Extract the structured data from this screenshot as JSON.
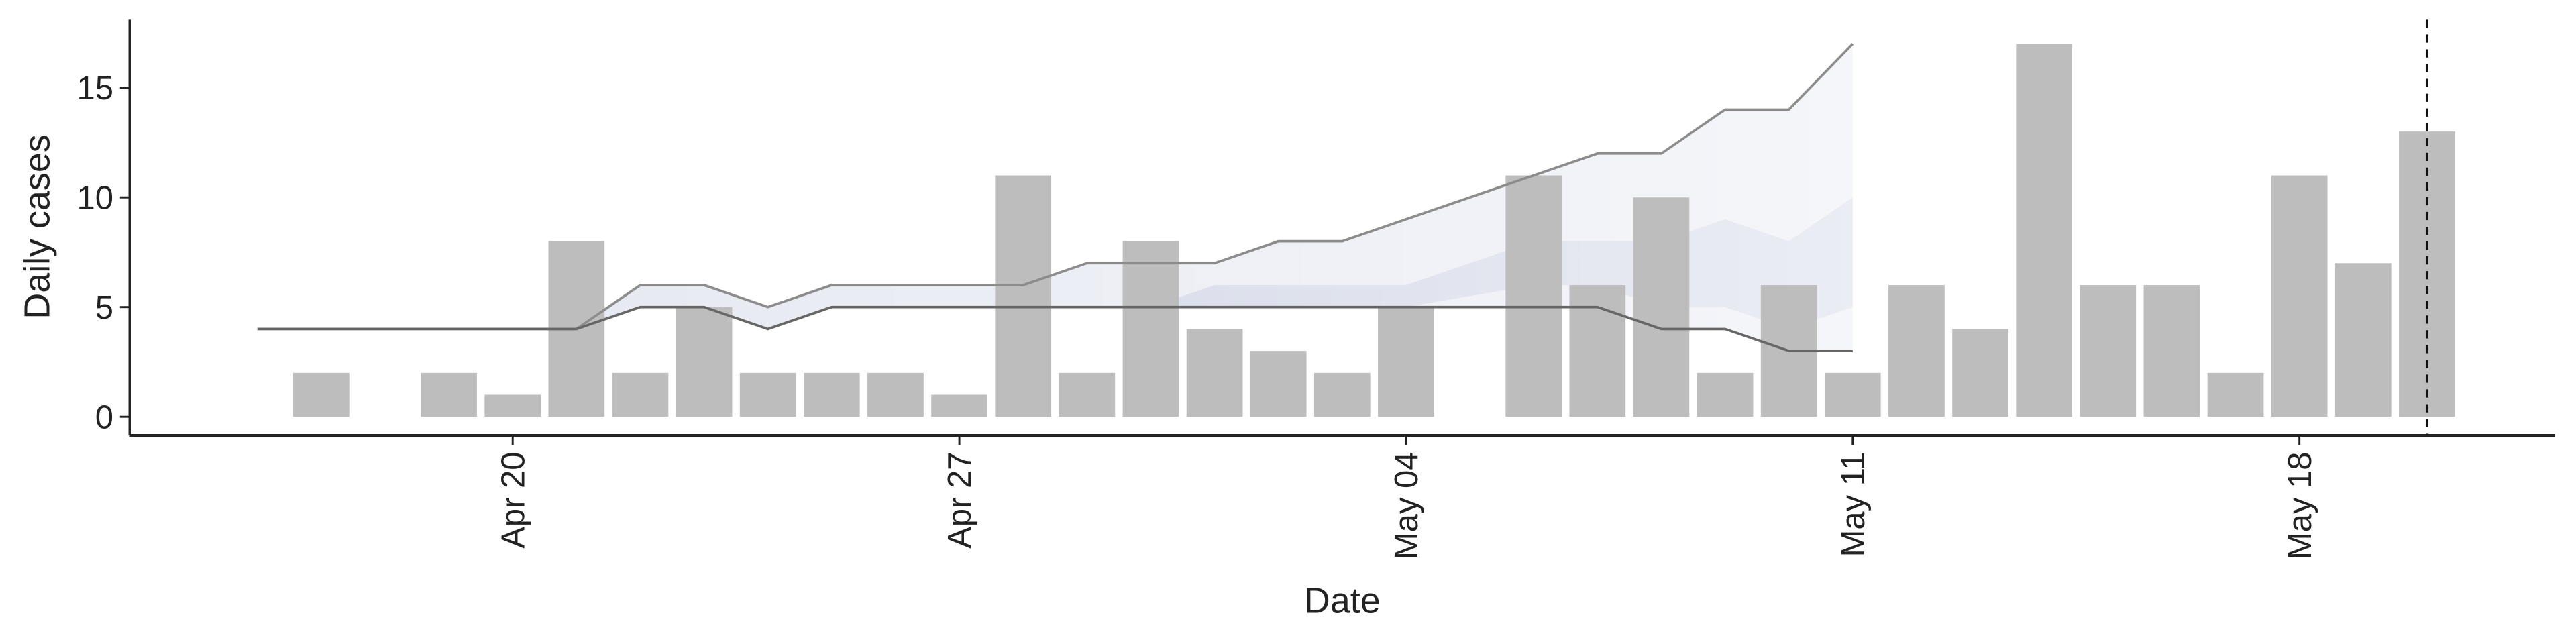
{
  "chart_data": {
    "type": "bar",
    "x_label": "Date",
    "y_label": "Daily cases",
    "x": [
      "Apr 16",
      "Apr 17",
      "Apr 18",
      "Apr 19",
      "Apr 20",
      "Apr 21",
      "Apr 22",
      "Apr 23",
      "Apr 24",
      "Apr 25",
      "Apr 26",
      "Apr 27",
      "Apr 28",
      "Apr 29",
      "Apr 30",
      "May 01",
      "May 02",
      "May 03",
      "May 04",
      "May 05",
      "May 06",
      "May 07",
      "May 08",
      "May 09",
      "May 10",
      "May 11",
      "May 12",
      "May 13",
      "May 14",
      "May 15",
      "May 16",
      "May 17",
      "May 18",
      "May 19",
      "May 20"
    ],
    "values": [
      0,
      2,
      0,
      2,
      1,
      8,
      2,
      5,
      2,
      2,
      2,
      1,
      11,
      2,
      8,
      4,
      3,
      2,
      5,
      0,
      11,
      6,
      10,
      2,
      6,
      2,
      6,
      4,
      17,
      6,
      6,
      2,
      11,
      7,
      13
    ],
    "color": "#bdbdbd",
    "lines": [
      {
        "color": "#8c8c8c",
        "values": [
          4,
          4,
          4,
          4,
          4,
          4,
          6,
          6,
          5,
          6,
          6,
          6,
          6,
          7,
          7,
          7,
          8,
          8,
          9,
          10,
          11,
          12,
          12,
          14,
          14,
          17,
          null,
          null,
          null,
          null,
          null,
          null,
          null,
          null,
          null
        ]
      },
      {
        "color": "#666666",
        "values": [
          4,
          4,
          4,
          4,
          4,
          4,
          5,
          5,
          4,
          5,
          5,
          5,
          5,
          5,
          5,
          5,
          5,
          5,
          5,
          5,
          5,
          5,
          4,
          4,
          3,
          3,
          null,
          null,
          null,
          null,
          null,
          null,
          null,
          null,
          null
        ]
      }
    ],
    "ribbon_color": "#e2e5ef",
    "inner_band": {
      "color": "#c5cbdf",
      "lower": [
        null,
        null,
        null,
        null,
        null,
        null,
        null,
        null,
        null,
        null,
        null,
        null,
        null,
        null,
        5,
        5,
        5,
        5,
        5,
        5.5,
        6,
        6,
        5,
        5,
        4,
        5,
        null,
        null,
        null,
        null,
        null,
        null,
        null,
        null,
        null
      ],
      "upper": [
        null,
        null,
        null,
        null,
        null,
        null,
        null,
        null,
        null,
        null,
        null,
        null,
        null,
        null,
        5,
        6,
        6,
        6,
        6,
        7,
        8,
        8,
        8,
        9,
        8,
        10,
        null,
        null,
        null,
        null,
        null,
        null,
        null,
        null,
        null
      ]
    },
    "vline": "May 20",
    "xlim": [
      "Apr 14",
      "May 22"
    ],
    "xticks": [
      "Apr 20",
      "Apr 27",
      "May 04",
      "May 11",
      "May 18"
    ],
    "ylim": [
      -0.85,
      18.1
    ],
    "yticks": [
      0,
      5,
      10,
      15
    ]
  }
}
